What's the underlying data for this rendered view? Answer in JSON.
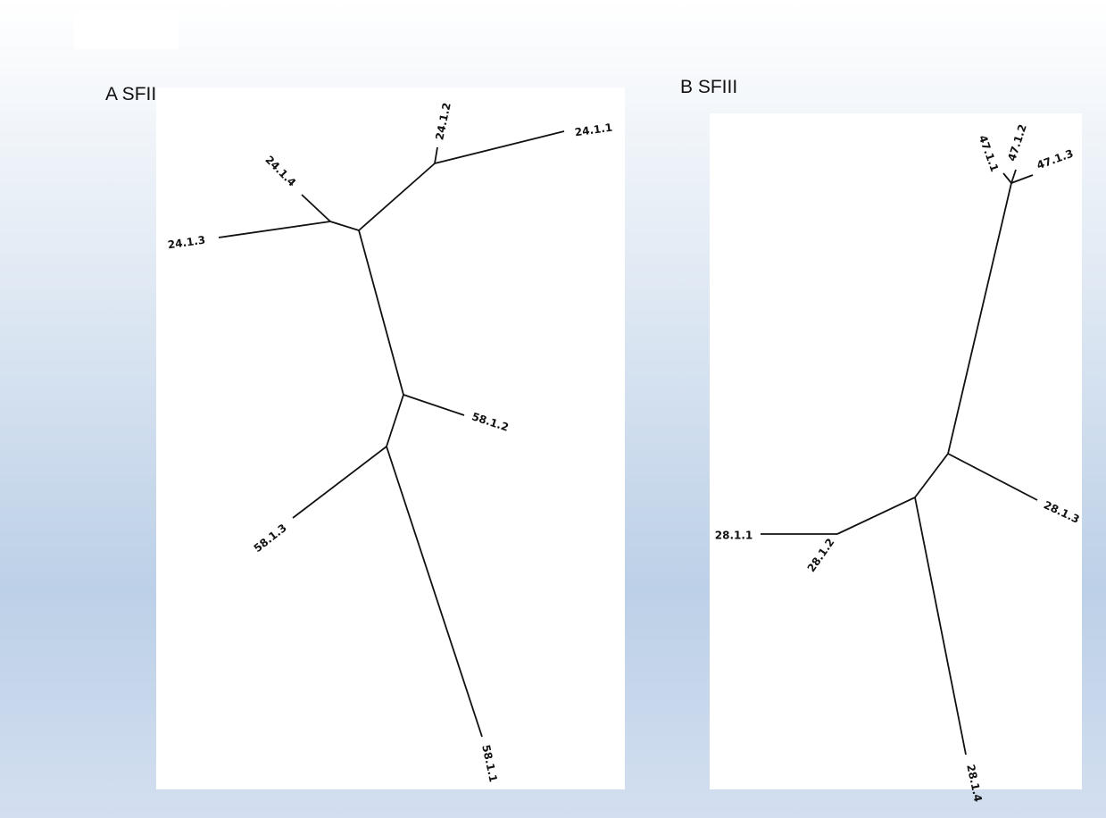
{
  "panels": [
    {
      "title": "A SFII",
      "leaves": [
        "24.1.1",
        "24.1.2",
        "24.1.4",
        "24.1.3",
        "58.1.2",
        "58.1.3",
        "58.1.1"
      ]
    },
    {
      "title": "B SFIII",
      "leaves": [
        "47.1.1",
        "47.1.2",
        "47.1.3",
        "28.1.3",
        "28.1.1",
        "28.1.2",
        "28.1.4"
      ]
    }
  ]
}
